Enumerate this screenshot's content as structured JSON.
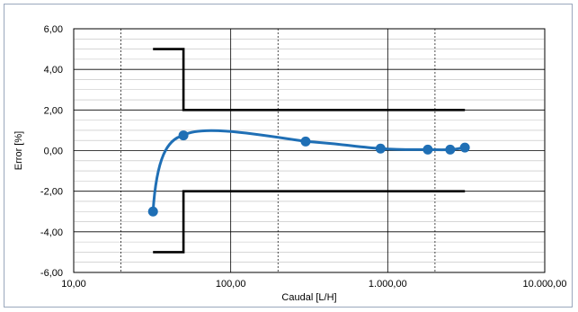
{
  "chart_data": {
    "type": "scatter",
    "title": "",
    "xlabel": "Caudal [L/H]",
    "ylabel": "Error [%]",
    "x_scale": "log",
    "xlim": [
      10,
      10000
    ],
    "ylim": [
      -6,
      6
    ],
    "x_ticks": [
      "10,00",
      "100,00",
      "1.000,00",
      "10.000,00"
    ],
    "y_ticks": [
      "6,00",
      "4,00",
      "2,00",
      "0,00",
      "-2,00",
      "-4,00",
      "-6,00"
    ],
    "grid": true,
    "series": [
      {
        "kind": "measured",
        "color": "#1f6fb5",
        "x": [
          32,
          50,
          300,
          900,
          1800,
          2500,
          3100
        ],
        "y": [
          -3.0,
          0.75,
          0.45,
          0.1,
          0.05,
          0.05,
          0.15
        ]
      },
      {
        "kind": "upper_limit",
        "color": "#000000",
        "x": [
          32,
          50,
          50,
          3100
        ],
        "y": [
          5.0,
          5.0,
          2.0,
          2.0
        ]
      },
      {
        "kind": "lower_limit",
        "color": "#000000",
        "x": [
          32,
          50,
          50,
          3100
        ],
        "y": [
          -5.0,
          -5.0,
          -2.0,
          -2.0
        ]
      }
    ]
  }
}
